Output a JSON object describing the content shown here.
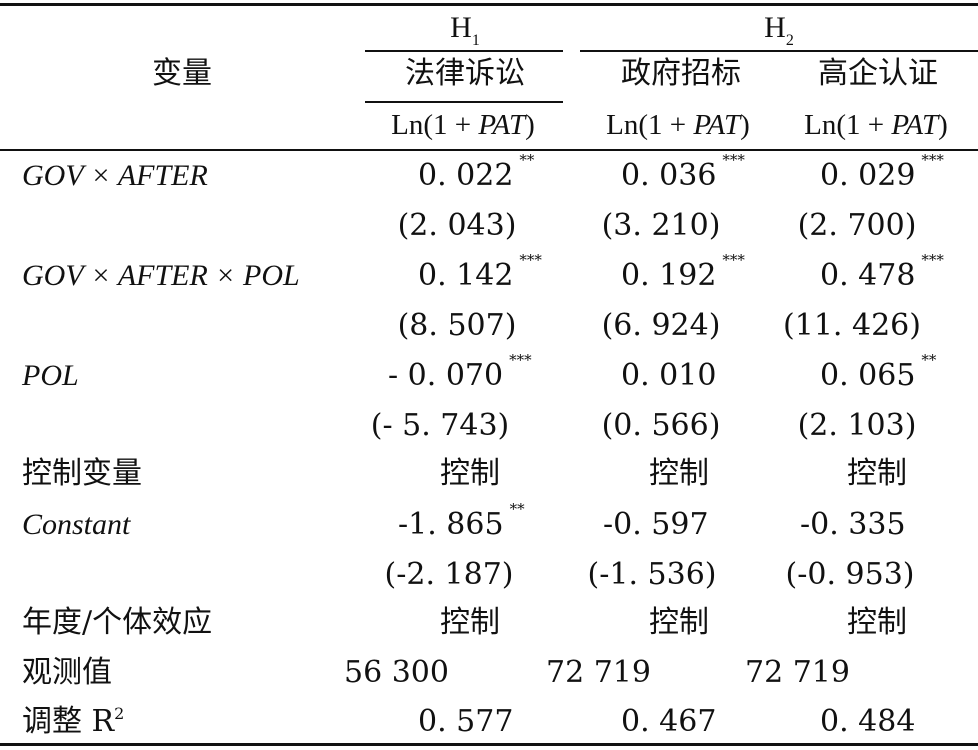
{
  "header": {
    "h1": {
      "letter": "H",
      "sub": "1"
    },
    "h2": {
      "letter": "H",
      "sub": "2"
    },
    "variable_label": "变量",
    "col1_name": "法律诉讼",
    "col2_name": "政府招标",
    "col3_name": "高企认证",
    "dep_var_prefix": "Ln(1 + ",
    "dep_var_italic": "PAT",
    "dep_var_suffix": ")"
  },
  "rows": [
    {
      "label": "GOV × AFTER",
      "italic": true,
      "values": [
        "0. 022",
        "0. 036",
        "0. 029"
      ],
      "stars": [
        "**",
        "***",
        "***"
      ]
    },
    {
      "label": "",
      "values": [
        "(2. 043)",
        "(3. 210)",
        "(2. 700)"
      ],
      "stars": [
        "",
        "",
        ""
      ]
    },
    {
      "label": "GOV × AFTER × POL",
      "italic": true,
      "values": [
        "0. 142",
        "0. 192",
        "0. 478"
      ],
      "stars": [
        "***",
        "***",
        "***"
      ]
    },
    {
      "label": "",
      "values": [
        "(8. 507)",
        "(6. 924)",
        "(11. 426)"
      ],
      "stars": [
        "",
        "",
        ""
      ]
    },
    {
      "label": "POL",
      "italic": true,
      "values": [
        "- 0. 070",
        "0. 010",
        "0. 065"
      ],
      "stars": [
        "***",
        "",
        "**"
      ]
    },
    {
      "label": "",
      "values": [
        "(- 5. 743)",
        "(0. 566)",
        "(2. 103)"
      ],
      "stars": [
        "",
        "",
        ""
      ]
    },
    {
      "label": "控制变量",
      "values": [
        "控制",
        "控制",
        "控制"
      ],
      "stars": [
        "",
        "",
        ""
      ]
    },
    {
      "label": "Constant",
      "italic": true,
      "values": [
        "-1. 865",
        "-0. 597",
        "-0. 335"
      ],
      "stars": [
        "**",
        "",
        ""
      ]
    },
    {
      "label": "",
      "values": [
        "(-2. 187)",
        "(-1. 536)",
        "(-0. 953)"
      ],
      "stars": [
        "",
        "",
        ""
      ]
    },
    {
      "label": "年度/个体效应",
      "values": [
        "控制",
        "控制",
        "控制"
      ],
      "stars": [
        "",
        "",
        ""
      ]
    },
    {
      "label": "观测值",
      "values": [
        "56 300",
        "72 719",
        "72 719"
      ],
      "stars": [
        "",
        "",
        ""
      ]
    },
    {
      "label": "调整 R",
      "label_sup": "2",
      "values": [
        "0. 577",
        "0. 467",
        "0. 484"
      ],
      "stars": [
        "",
        "",
        ""
      ]
    }
  ]
}
